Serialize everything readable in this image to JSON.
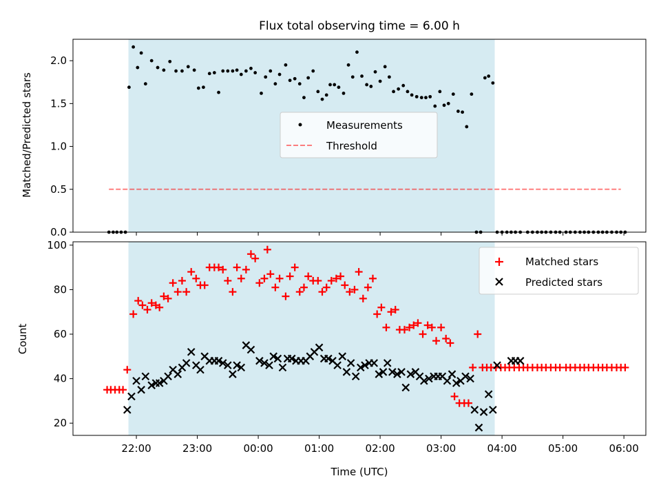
{
  "title": "Flux total observing time = 6.00 h",
  "colors": {
    "span": "#add8e6",
    "measurement": "#000000",
    "threshold": "#ff0000",
    "matched": "#ff0000",
    "predicted": "#000000"
  },
  "chart_data": [
    {
      "type": "scatter",
      "ylabel": "Matched/Predicted stars",
      "xlabel": "",
      "ylim": [
        0,
        2.25
      ],
      "yticks": [
        0.0,
        0.5,
        1.0,
        1.5,
        2.0
      ],
      "ytick_labels": [
        "0.0",
        "0.5",
        "1.0",
        "1.5",
        "2.0"
      ],
      "legend_position": "center",
      "observing_span": {
        "start": 21.87,
        "end": 27.88
      },
      "series": [
        {
          "name": "Measurements",
          "kind": "points",
          "x": [
            21.55,
            21.62,
            21.68,
            21.75,
            21.82,
            21.88,
            21.95,
            22.02,
            22.08,
            22.15,
            22.25,
            22.35,
            22.45,
            22.55,
            22.65,
            22.75,
            22.85,
            22.95,
            23.02,
            23.1,
            23.2,
            23.28,
            23.35,
            23.42,
            23.5,
            23.58,
            23.65,
            23.72,
            23.8,
            23.88,
            23.95,
            24.05,
            24.12,
            24.2,
            24.28,
            24.35,
            24.45,
            24.52,
            24.6,
            24.68,
            24.75,
            24.82,
            24.9,
            24.98,
            25.05,
            25.12,
            25.18,
            25.25,
            25.32,
            25.4,
            25.48,
            25.55,
            25.62,
            25.7,
            25.78,
            25.85,
            25.92,
            26.0,
            26.08,
            26.15,
            26.22,
            26.3,
            26.38,
            26.45,
            26.52,
            26.6,
            26.68,
            26.75,
            26.82,
            26.9,
            26.98,
            27.05,
            27.12,
            27.2,
            27.28,
            27.35,
            27.42,
            27.5,
            27.58,
            27.65,
            27.72,
            27.78,
            27.85,
            27.92,
            28.0,
            28.08,
            28.15,
            28.22,
            28.3,
            28.42,
            28.5,
            28.58,
            28.65,
            28.72,
            28.8,
            28.88,
            28.95,
            29.05,
            29.12,
            29.2,
            29.28,
            29.35,
            29.42,
            29.5,
            29.58,
            29.65,
            29.72,
            29.8,
            29.88,
            29.95,
            30.02
          ],
          "y": [
            0,
            0,
            0,
            0,
            0,
            1.69,
            2.16,
            1.92,
            2.09,
            1.73,
            2.0,
            1.92,
            1.89,
            1.99,
            1.88,
            1.88,
            1.93,
            1.89,
            1.68,
            1.69,
            1.85,
            1.86,
            1.63,
            1.88,
            1.88,
            1.88,
            1.89,
            1.84,
            1.88,
            1.91,
            1.86,
            1.62,
            1.81,
            1.88,
            1.73,
            1.84,
            1.95,
            1.77,
            1.79,
            1.73,
            1.57,
            1.8,
            1.88,
            1.64,
            1.55,
            1.6,
            1.72,
            1.72,
            1.69,
            1.62,
            1.95,
            1.81,
            2.1,
            1.82,
            1.72,
            1.7,
            1.87,
            1.76,
            1.93,
            1.81,
            1.64,
            1.67,
            1.71,
            1.64,
            1.6,
            1.58,
            1.57,
            1.57,
            1.58,
            1.47,
            1.64,
            1.48,
            1.5,
            1.61,
            1.41,
            1.4,
            1.23,
            1.61,
            0,
            0,
            1.8,
            1.82,
            1.74,
            0,
            0,
            0,
            0,
            0,
            0,
            0,
            0,
            0,
            0,
            0,
            0,
            0,
            0,
            0,
            0,
            0,
            0,
            0,
            0,
            0,
            0,
            0,
            0,
            0,
            0,
            0,
            0
          ]
        },
        {
          "name": "Threshold",
          "kind": "dashed-line",
          "x": [
            21.55,
            29.95
          ],
          "y": [
            0.5,
            0.5
          ]
        }
      ]
    },
    {
      "type": "scatter",
      "ylabel": "Count",
      "xlabel": "Time (UTC)",
      "ylim": [
        14.5,
        101.5
      ],
      "yticks": [
        20,
        40,
        60,
        80,
        100
      ],
      "ytick_labels": [
        "20",
        "40",
        "60",
        "80",
        "100"
      ],
      "xticks": [
        22,
        23,
        24,
        25,
        26,
        27,
        28,
        29,
        30
      ],
      "xtick_labels": [
        "22:00",
        "23:00",
        "00:00",
        "01:00",
        "02:00",
        "03:00",
        "04:00",
        "05:00",
        "06:00"
      ],
      "xlim": [
        20.96,
        30.36
      ],
      "legend_position": "top-right",
      "observing_span": {
        "start": 21.87,
        "end": 27.88
      },
      "series": [
        {
          "name": "Matched stars",
          "kind": "plus",
          "x": [
            21.52,
            21.58,
            21.65,
            21.72,
            21.78,
            21.85,
            21.95,
            22.03,
            22.1,
            22.18,
            22.25,
            22.32,
            22.38,
            22.45,
            22.52,
            22.6,
            22.68,
            22.75,
            22.82,
            22.9,
            22.98,
            23.05,
            23.12,
            23.2,
            23.28,
            23.35,
            23.42,
            23.5,
            23.58,
            23.65,
            23.72,
            23.8,
            23.88,
            23.95,
            24.02,
            24.1,
            24.15,
            24.2,
            24.28,
            24.35,
            24.45,
            24.52,
            24.6,
            24.68,
            24.75,
            24.82,
            24.9,
            24.98,
            25.05,
            25.12,
            25.2,
            25.28,
            25.35,
            25.42,
            25.5,
            25.58,
            25.65,
            25.72,
            25.8,
            25.88,
            25.95,
            26.02,
            26.1,
            26.18,
            26.25,
            26.32,
            26.4,
            26.48,
            26.55,
            26.62,
            26.7,
            26.78,
            26.85,
            26.92,
            27.0,
            27.08,
            27.15,
            27.22,
            27.3,
            27.38,
            27.45,
            27.52,
            27.6,
            27.68,
            27.75,
            27.82,
            27.9,
            27.98,
            28.05,
            28.12,
            28.2,
            28.28,
            28.35,
            28.42,
            28.5,
            28.58,
            28.65,
            28.72,
            28.8,
            28.88,
            28.95,
            29.05,
            29.12,
            29.2,
            29.28,
            29.35,
            29.42,
            29.5,
            29.58,
            29.65,
            29.72,
            29.8,
            29.88,
            29.95,
            30.02
          ],
          "y": [
            35,
            35,
            35,
            35,
            35,
            44,
            69,
            75,
            73,
            71,
            74,
            73,
            72,
            77,
            76,
            83,
            79,
            84,
            79,
            88,
            85,
            82,
            82,
            90,
            90,
            90,
            89,
            84,
            79,
            90,
            85,
            89,
            96,
            94,
            83,
            85,
            98,
            87,
            81,
            85,
            77,
            86,
            90,
            79,
            81,
            86,
            84,
            84,
            79,
            81,
            84,
            85,
            86,
            82,
            79,
            80,
            88,
            76,
            81,
            85,
            69,
            72,
            63,
            70,
            71,
            62,
            62,
            63,
            64,
            65,
            60,
            64,
            63,
            57,
            63,
            58,
            56,
            32,
            29,
            29,
            29,
            45,
            60,
            45,
            45,
            45,
            45,
            45,
            45,
            45,
            45,
            45,
            45,
            45,
            45,
            45,
            45,
            45,
            45,
            45,
            45,
            45,
            45,
            45,
            45,
            45,
            45,
            45,
            45,
            45,
            45,
            45,
            45,
            45,
            45
          ]
        },
        {
          "name": "Predicted stars",
          "kind": "x",
          "x": [
            21.85,
            21.92,
            22.0,
            22.08,
            22.15,
            22.25,
            22.32,
            22.38,
            22.45,
            22.52,
            22.6,
            22.68,
            22.75,
            22.82,
            22.9,
            22.98,
            23.05,
            23.12,
            23.2,
            23.28,
            23.35,
            23.42,
            23.5,
            23.58,
            23.65,
            23.72,
            23.8,
            23.88,
            24.02,
            24.1,
            24.18,
            24.25,
            24.32,
            24.4,
            24.48,
            24.55,
            24.62,
            24.7,
            24.78,
            24.85,
            24.92,
            25.0,
            25.08,
            25.15,
            25.22,
            25.3,
            25.38,
            25.45,
            25.52,
            25.6,
            25.68,
            25.75,
            25.82,
            25.9,
            25.98,
            26.05,
            26.12,
            26.2,
            26.28,
            26.35,
            26.42,
            26.5,
            26.58,
            26.65,
            26.72,
            26.8,
            26.88,
            26.95,
            27.02,
            27.1,
            27.18,
            27.25,
            27.32,
            27.4,
            27.48,
            27.55,
            27.62,
            27.7,
            27.78,
            27.85,
            27.92,
            28.15,
            28.22,
            28.3
          ],
          "y": [
            26,
            32,
            39,
            35,
            41,
            37,
            38,
            38,
            39,
            41,
            44,
            42,
            45,
            47,
            52,
            46,
            44,
            50,
            48,
            48,
            48,
            47,
            46,
            42,
            46,
            45,
            55,
            53,
            48,
            47,
            46,
            50,
            49,
            45,
            49,
            49,
            48,
            48,
            48,
            50,
            52,
            54,
            49,
            49,
            48,
            46,
            50,
            43,
            47,
            41,
            45,
            46,
            47,
            47,
            42,
            43,
            47,
            43,
            42,
            43,
            36,
            42,
            43,
            41,
            39,
            40,
            41,
            41,
            41,
            39,
            42,
            38,
            39,
            41,
            40,
            26,
            18,
            25,
            33,
            26,
            46,
            48,
            48,
            48
          ]
        }
      ]
    }
  ]
}
